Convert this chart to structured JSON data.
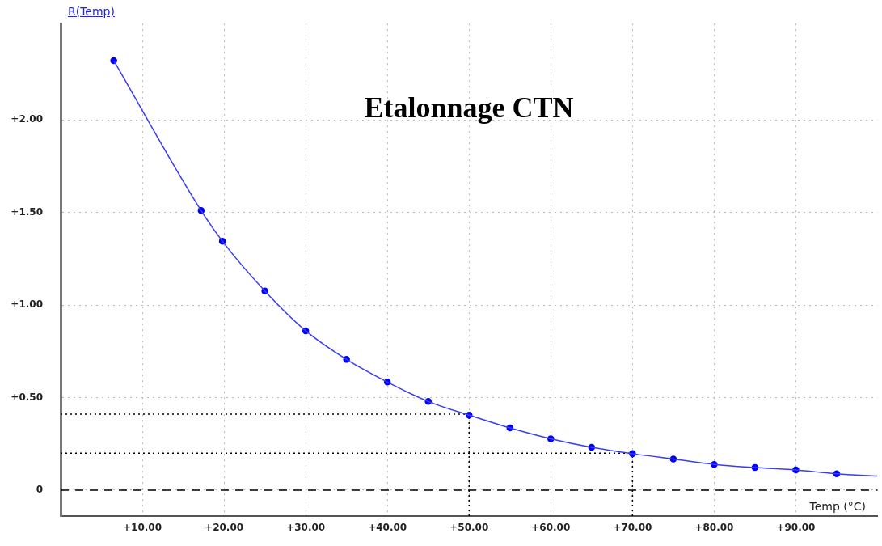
{
  "chart_data": {
    "type": "line",
    "title": "Etalonnage CTN",
    "xlabel": "Temp (°C)",
    "ylabel": "R(Temp)",
    "xlim": [
      0,
      100
    ],
    "ylim": [
      -0.14,
      2.52
    ],
    "xticks": [
      {
        "value": 10,
        "label": "+10.00"
      },
      {
        "value": 20,
        "label": "+20.00"
      },
      {
        "value": 30,
        "label": "+30.00"
      },
      {
        "value": 40,
        "label": "+40.00"
      },
      {
        "value": 50,
        "label": "+50.00"
      },
      {
        "value": 60,
        "label": "+60.00"
      },
      {
        "value": 70,
        "label": "+70.00"
      },
      {
        "value": 80,
        "label": "+80.00"
      },
      {
        "value": 90,
        "label": "+90.00"
      }
    ],
    "yticks": [
      0,
      {
        "value": 0.5,
        "label": "+0.50"
      },
      {
        "value": 1,
        "label": "+1.00"
      },
      {
        "value": 1.5,
        "label": "+1.50"
      },
      {
        "value": 2,
        "label": "+2.00"
      }
    ],
    "grid": true,
    "legend": false,
    "line_style": "solid",
    "series": [
      {
        "type": "line",
        "color": "#3c3cf0",
        "marker": "none",
        "x": [
          6.5,
          17.2,
          19.8,
          25,
          30,
          35,
          40,
          45,
          50,
          55,
          60,
          65,
          70,
          75,
          80,
          85,
          90,
          95,
          100
        ],
        "values": [
          2.32,
          1.51,
          1.345,
          1.076,
          0.861,
          0.706,
          0.584,
          0.479,
          0.405,
          0.336,
          0.277,
          0.231,
          0.197,
          0.168,
          0.139,
          0.122,
          0.109,
          0.088,
          0.076
        ]
      },
      {
        "type": "scatter",
        "color": "#0000ff",
        "marker": "circle",
        "x": [
          6.5,
          17.2,
          19.8,
          25,
          30,
          35,
          40,
          45,
          50,
          55,
          60,
          65,
          70,
          75,
          80,
          85,
          90,
          95
        ],
        "values": [
          2.32,
          1.51,
          1.345,
          1.076,
          0.861,
          0.706,
          0.584,
          0.479,
          0.405,
          0.336,
          0.277,
          0.231,
          0.197,
          0.168,
          0.139,
          0.122,
          0.109,
          0.088
        ]
      }
    ],
    "ref_lines": [
      {
        "axis": "y",
        "value": 0,
        "line_style": "dashed",
        "color": "#000000"
      },
      {
        "axis": "y",
        "value": 0.41,
        "line_style": "dotted",
        "color": "#000000"
      },
      {
        "axis": "x",
        "value": 50,
        "line_style": "dotted",
        "color": "#000000"
      },
      {
        "axis": "y",
        "value": 0.2,
        "line_style": "dotted",
        "color": "#000000"
      },
      {
        "axis": "x",
        "value": 70,
        "line_style": "dotted",
        "color": "#000000"
      }
    ]
  }
}
